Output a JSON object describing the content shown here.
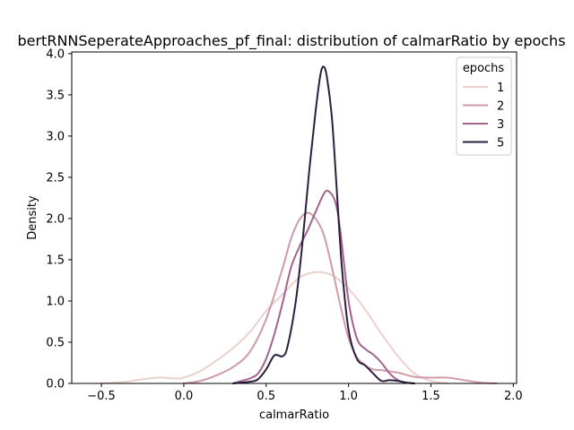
{
  "chart_data": {
    "type": "line",
    "title": "bertRNNSeperateApproaches_pf_final: distribution of calmarRatio by epochs",
    "xlabel": "calmarRatio",
    "ylabel": "Density",
    "xlim": [
      -0.68,
      2.02
    ],
    "ylim": [
      0,
      4.02
    ],
    "xticks": [
      -0.5,
      0.0,
      0.5,
      1.0,
      1.5,
      2.0
    ],
    "xtick_labels": [
      "−0.5",
      "0.0",
      "0.5",
      "1.0",
      "1.5",
      "2.0"
    ],
    "yticks": [
      0.0,
      0.5,
      1.0,
      1.5,
      2.0,
      2.5,
      3.0,
      3.5,
      4.0
    ],
    "ytick_labels": [
      "0.0",
      "0.5",
      "1.0",
      "1.5",
      "2.0",
      "2.5",
      "3.0",
      "3.5",
      "4.0"
    ],
    "grid": false,
    "legend": {
      "title": "epochs",
      "placement": "top-right"
    },
    "series": [
      {
        "name": "1",
        "color": "#ecd0cb",
        "points": [
          [
            -0.5,
            0.0
          ],
          [
            -0.35,
            0.02
          ],
          [
            -0.25,
            0.05
          ],
          [
            -0.15,
            0.07
          ],
          [
            -0.05,
            0.06
          ],
          [
            0.0,
            0.07
          ],
          [
            0.1,
            0.15
          ],
          [
            0.2,
            0.28
          ],
          [
            0.3,
            0.43
          ],
          [
            0.4,
            0.62
          ],
          [
            0.5,
            0.88
          ],
          [
            0.6,
            1.08
          ],
          [
            0.7,
            1.28
          ],
          [
            0.8,
            1.35
          ],
          [
            0.9,
            1.31
          ],
          [
            1.0,
            1.15
          ],
          [
            1.1,
            0.9
          ],
          [
            1.2,
            0.6
          ],
          [
            1.3,
            0.33
          ],
          [
            1.4,
            0.12
          ],
          [
            1.5,
            0.03
          ],
          [
            1.6,
            0.0
          ]
        ]
      },
      {
        "name": "2",
        "color": "#d09aa8",
        "points": [
          [
            0.0,
            0.0
          ],
          [
            0.1,
            0.03
          ],
          [
            0.2,
            0.1
          ],
          [
            0.3,
            0.2
          ],
          [
            0.4,
            0.38
          ],
          [
            0.5,
            0.78
          ],
          [
            0.6,
            1.4
          ],
          [
            0.65,
            1.75
          ],
          [
            0.7,
            1.98
          ],
          [
            0.75,
            2.07
          ],
          [
            0.8,
            2.0
          ],
          [
            0.85,
            1.8
          ],
          [
            0.9,
            1.4
          ],
          [
            0.95,
            0.95
          ],
          [
            1.0,
            0.55
          ],
          [
            1.05,
            0.32
          ],
          [
            1.1,
            0.22
          ],
          [
            1.15,
            0.17
          ],
          [
            1.2,
            0.16
          ],
          [
            1.3,
            0.13
          ],
          [
            1.4,
            0.08
          ],
          [
            1.5,
            0.07
          ],
          [
            1.6,
            0.07
          ],
          [
            1.7,
            0.04
          ],
          [
            1.8,
            0.01
          ],
          [
            1.9,
            0.0
          ]
        ]
      },
      {
        "name": "3",
        "color": "#a4628f",
        "points": [
          [
            0.3,
            0.0
          ],
          [
            0.35,
            0.03
          ],
          [
            0.4,
            0.06
          ],
          [
            0.45,
            0.12
          ],
          [
            0.5,
            0.3
          ],
          [
            0.55,
            0.6
          ],
          [
            0.6,
            0.98
          ],
          [
            0.65,
            1.4
          ],
          [
            0.7,
            1.65
          ],
          [
            0.75,
            1.85
          ],
          [
            0.8,
            2.08
          ],
          [
            0.85,
            2.3
          ],
          [
            0.88,
            2.33
          ],
          [
            0.92,
            2.2
          ],
          [
            0.95,
            1.85
          ],
          [
            1.0,
            1.0
          ],
          [
            1.05,
            0.55
          ],
          [
            1.1,
            0.42
          ],
          [
            1.15,
            0.35
          ],
          [
            1.2,
            0.25
          ],
          [
            1.25,
            0.12
          ],
          [
            1.3,
            0.04
          ],
          [
            1.35,
            0.01
          ],
          [
            1.4,
            0.0
          ]
        ]
      },
      {
        "name": "5",
        "color": "#2c1e3e",
        "points": [
          [
            0.3,
            0.0
          ],
          [
            0.4,
            0.02
          ],
          [
            0.45,
            0.05
          ],
          [
            0.5,
            0.17
          ],
          [
            0.55,
            0.34
          ],
          [
            0.6,
            0.33
          ],
          [
            0.63,
            0.45
          ],
          [
            0.68,
            1.0
          ],
          [
            0.72,
            1.7
          ],
          [
            0.76,
            2.55
          ],
          [
            0.8,
            3.3
          ],
          [
            0.83,
            3.75
          ],
          [
            0.85,
            3.84
          ],
          [
            0.87,
            3.7
          ],
          [
            0.9,
            3.2
          ],
          [
            0.93,
            2.3
          ],
          [
            0.96,
            1.4
          ],
          [
            1.0,
            0.65
          ],
          [
            1.05,
            0.3
          ],
          [
            1.1,
            0.22
          ],
          [
            1.15,
            0.12
          ],
          [
            1.2,
            0.03
          ],
          [
            1.25,
            0.04
          ],
          [
            1.3,
            0.03
          ],
          [
            1.35,
            0.01
          ],
          [
            1.4,
            0.0
          ]
        ]
      }
    ]
  }
}
